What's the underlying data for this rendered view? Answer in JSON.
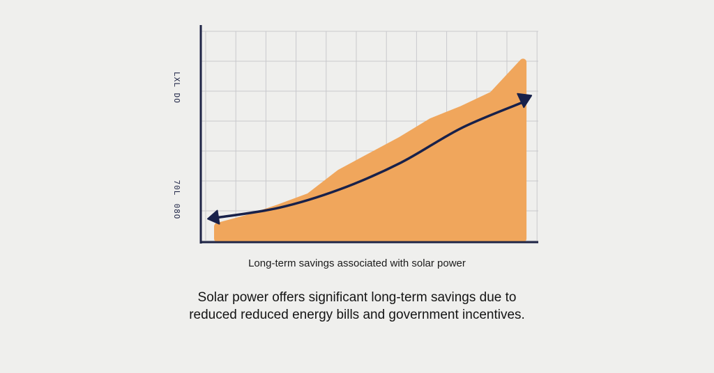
{
  "chart_data": {
    "type": "area",
    "x": [
      0,
      1,
      2,
      3,
      4,
      5,
      6,
      7,
      8,
      9,
      10
    ],
    "series": [
      {
        "values": [
          0.5,
          0.9,
          1.4,
          1.95,
          3.1,
          3.9,
          4.7,
          5.6,
          6.2,
          6.9,
          8.5
        ]
      }
    ],
    "trend_arrow": {
      "x": [
        0,
        2,
        4,
        6,
        8,
        10
      ],
      "y": [
        0.9,
        1.4,
        2.3,
        3.6,
        5.3,
        6.6
      ]
    },
    "xlabel": "Long-term savings associated with solar power",
    "ylabel": "",
    "y_tick_labels": [
      "LXL DO",
      "70L",
      "08O"
    ],
    "xlim": [
      0,
      10.5
    ],
    "ylim": [
      0,
      10
    ],
    "grid": true,
    "colors": {
      "area": "#f0a65c",
      "arrow": "#18214a",
      "axis": "#1f2546",
      "grid": "#c9c9cc"
    }
  },
  "caption": "Solar power offers significant long-term savings due to reduced reduced energy bills and government incentives."
}
